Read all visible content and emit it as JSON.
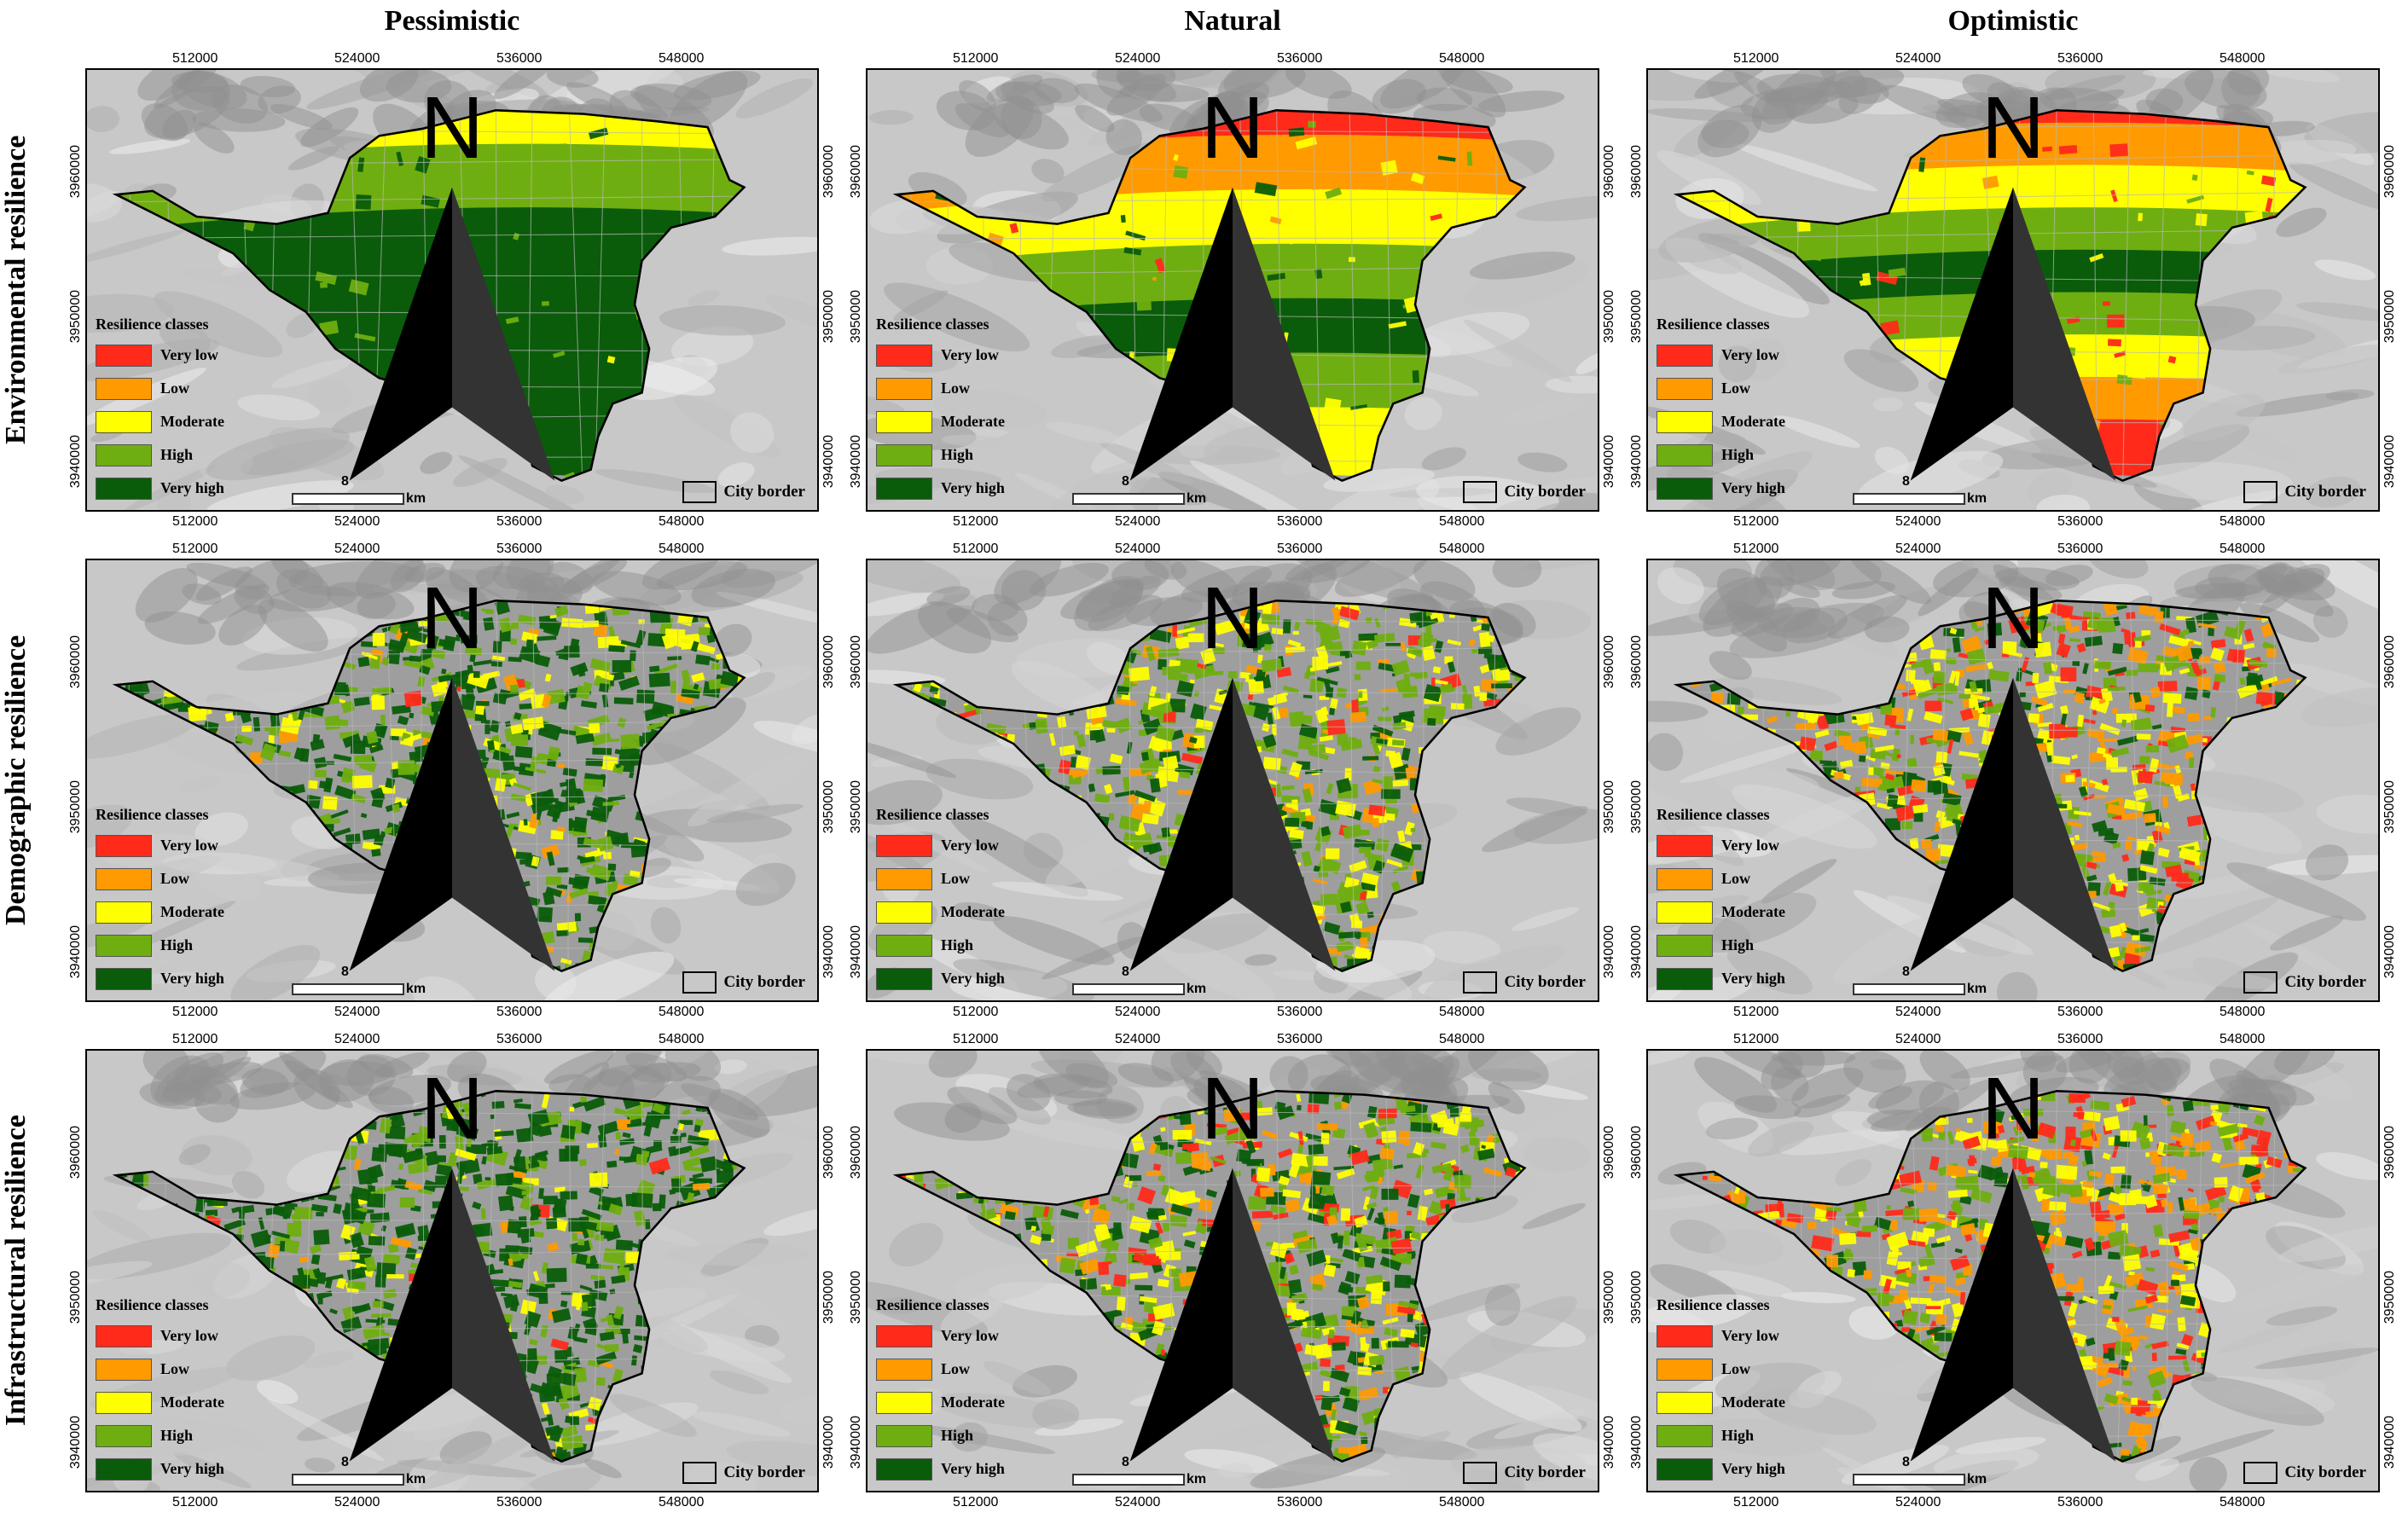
{
  "columns": [
    "Pessimistic",
    "Natural",
    "Optimistic"
  ],
  "rows": [
    "Environmental resilience",
    "Demographic resilience",
    "Infrastructural resilience"
  ],
  "x_ticks": [
    "512000",
    "524000",
    "536000",
    "548000"
  ],
  "y_ticks": [
    "3940000",
    "3950000",
    "3960000"
  ],
  "legend": {
    "title": "Resilience classes",
    "classes": [
      {
        "label": "Very low",
        "color": "#ff2a1a"
      },
      {
        "label": "Low",
        "color": "#ff9a00"
      },
      {
        "label": "Moderate",
        "color": "#ffff00"
      },
      {
        "label": "High",
        "color": "#6fae10"
      },
      {
        "label": "Very high",
        "color": "#0a5c0a"
      }
    ]
  },
  "scale": {
    "value": "8",
    "unit": "km"
  },
  "city_border_label": "City border",
  "north_icon": "north-arrow-icon",
  "panels": [
    {
      "row": 0,
      "col": 0,
      "class_weights": [
        0,
        0,
        0.06,
        0.32,
        0.62
      ],
      "pattern": "bands-light-north"
    },
    {
      "row": 0,
      "col": 1,
      "class_weights": [
        0.1,
        0.16,
        0.34,
        0.2,
        0.2
      ],
      "pattern": "bands-mixed"
    },
    {
      "row": 0,
      "col": 2,
      "class_weights": [
        0.34,
        0.2,
        0.26,
        0.12,
        0.08
      ],
      "pattern": "bands-heavy-north"
    },
    {
      "row": 1,
      "col": 0,
      "class_weights": [
        0.01,
        0.04,
        0.15,
        0.25,
        0.55
      ],
      "pattern": "speckle"
    },
    {
      "row": 1,
      "col": 1,
      "class_weights": [
        0.06,
        0.12,
        0.3,
        0.3,
        0.22
      ],
      "pattern": "speckle"
    },
    {
      "row": 1,
      "col": 2,
      "class_weights": [
        0.16,
        0.2,
        0.26,
        0.22,
        0.16
      ],
      "pattern": "speckle"
    },
    {
      "row": 2,
      "col": 0,
      "class_weights": [
        0.01,
        0.03,
        0.08,
        0.28,
        0.6
      ],
      "pattern": "speckle"
    },
    {
      "row": 2,
      "col": 1,
      "class_weights": [
        0.1,
        0.1,
        0.2,
        0.3,
        0.3
      ],
      "pattern": "speckle"
    },
    {
      "row": 2,
      "col": 2,
      "class_weights": [
        0.24,
        0.22,
        0.22,
        0.2,
        0.12
      ],
      "pattern": "speckle"
    }
  ]
}
